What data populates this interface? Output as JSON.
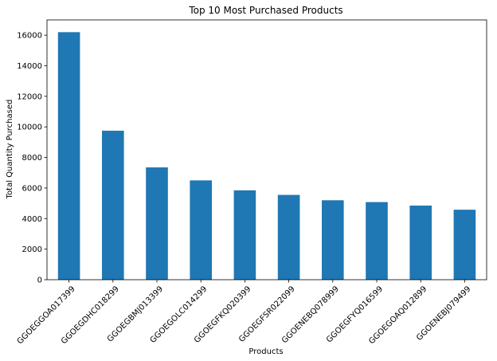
{
  "chart_data": {
    "type": "bar",
    "title": "Top 10 Most Purchased Products",
    "xlabel": "Products",
    "ylabel": "Total Quantity Purchased",
    "categories": [
      "GGOEGGOA017399",
      "GGOEGDHC018299",
      "GGOEGBMJ013399",
      "GGOEGOLC014299",
      "GGOEGFKQ020399",
      "GGOEGFSR022099",
      "GGOENEBQ078999",
      "GGOEGFYQ016599",
      "GGOEGOAQ012899",
      "GGOENEBJ079499"
    ],
    "values": [
      16200,
      9750,
      7350,
      6500,
      5850,
      5550,
      5200,
      5080,
      4850,
      4580
    ],
    "ylim": [
      0,
      17000
    ],
    "yticks": [
      0,
      2000,
      4000,
      6000,
      8000,
      10000,
      12000,
      14000,
      16000
    ],
    "ytick_labels": [
      "0",
      "2000",
      "4000",
      "6000",
      "8000",
      "10000",
      "12000",
      "14000",
      "16000"
    ],
    "grid": false,
    "bar_color": "#1f77b4"
  }
}
